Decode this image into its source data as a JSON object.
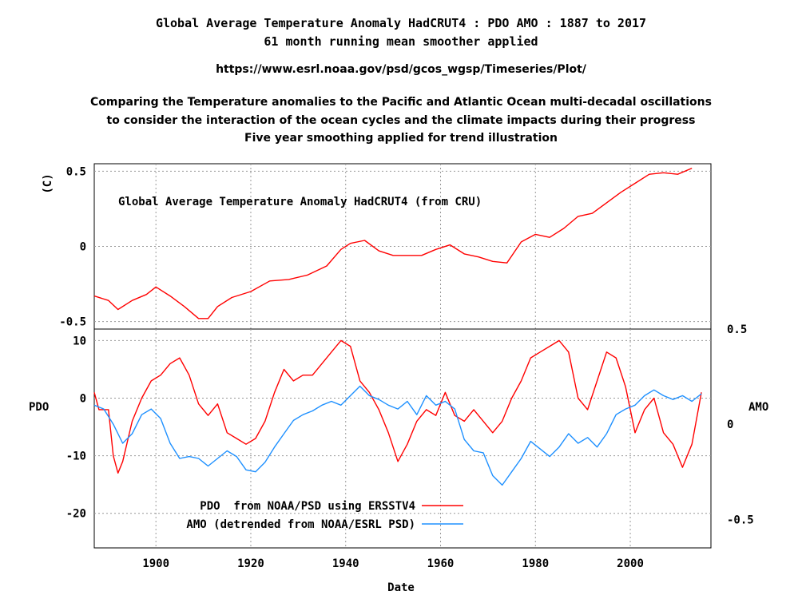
{
  "header": {
    "title_line1": "Global Average Temperature Anomaly HadCRUT4 : PDO AMO : 1887 to 2017",
    "title_line2": "61 month running mean smoother applied",
    "url": "https://www.esrl.noaa.gov/psd/gcos_wgsp/Timeseries/Plot/",
    "desc_line1": "Comparing the Temperature anomalies to the Pacific and Atlantic Ocean multi-decadal oscillations",
    "desc_line2": "to consider the interaction of the ocean cycles and the climate impacts during their progress",
    "desc_line3": "Five year smoothing applied for trend illustration"
  },
  "chart_data": [
    {
      "type": "line",
      "title": "Global Average Temperature Anomaly HadCRUT4 (from CRU)",
      "xlabel": "",
      "ylabel": "(C)",
      "xlim": [
        1887,
        2017
      ],
      "ylim": [
        -0.55,
        0.55
      ],
      "yticks": [
        0.5,
        0,
        -0.5
      ],
      "ytick_labels": [
        "0.5",
        "0",
        "-0.5"
      ],
      "grid": true,
      "series": [
        {
          "name": "",
          "color": "#ff0000",
          "x": [
            1887,
            1890,
            1892,
            1895,
            1898,
            1900,
            1903,
            1906,
            1909,
            1911,
            1913,
            1916,
            1920,
            1924,
            1928,
            1932,
            1936,
            1939,
            1941,
            1944,
            1947,
            1950,
            1953,
            1956,
            1959,
            1962,
            1965,
            1968,
            1971,
            1974,
            1977,
            1980,
            1983,
            1986,
            1989,
            1992,
            1995,
            1998,
            2001,
            2004,
            2007,
            2010,
            2013
          ],
          "y": [
            -0.33,
            -0.36,
            -0.42,
            -0.36,
            -0.32,
            -0.27,
            -0.33,
            -0.4,
            -0.48,
            -0.48,
            -0.4,
            -0.34,
            -0.3,
            -0.23,
            -0.22,
            -0.19,
            -0.13,
            -0.02,
            0.02,
            0.04,
            -0.03,
            -0.06,
            -0.06,
            -0.06,
            -0.02,
            0.01,
            -0.05,
            -0.07,
            -0.1,
            -0.11,
            0.03,
            0.08,
            0.06,
            0.12,
            0.2,
            0.22,
            0.29,
            0.36,
            0.42,
            0.48,
            0.49,
            0.48,
            0.52
          ]
        }
      ]
    },
    {
      "type": "line",
      "xlabel": "Date",
      "ylabel": "PDO",
      "y2label": "AMO",
      "xlim": [
        1887,
        2017
      ],
      "ylim": [
        -26,
        12
      ],
      "y2lim": [
        -0.65,
        0.5
      ],
      "xticks": [
        1900,
        1920,
        1940,
        1960,
        1980,
        2000
      ],
      "xtick_labels": [
        "1900",
        "1920",
        "1940",
        "1960",
        "1980",
        "2000"
      ],
      "yticks": [
        10,
        0,
        -10,
        -20
      ],
      "ytick_labels": [
        "10",
        "0",
        "-10",
        "-20"
      ],
      "y2ticks": [
        0.5,
        0,
        -0.5
      ],
      "y2tick_labels": [
        "0.5",
        "0",
        "-0.5"
      ],
      "grid": true,
      "legend": "bottom-left",
      "series": [
        {
          "name": "PDO  from NOAA/PSD using ERSSTV4",
          "color": "#ff0000",
          "axis": "left",
          "x": [
            1887,
            1888,
            1890,
            1891,
            1892,
            1893,
            1895,
            1897,
            1899,
            1901,
            1903,
            1905,
            1907,
            1909,
            1911,
            1913,
            1915,
            1917,
            1919,
            1921,
            1923,
            1925,
            1927,
            1929,
            1931,
            1933,
            1935,
            1937,
            1939,
            1941,
            1943,
            1945,
            1947,
            1949,
            1951,
            1953,
            1955,
            1957,
            1959,
            1961,
            1963,
            1965,
            1967,
            1969,
            1971,
            1973,
            1975,
            1977,
            1979,
            1981,
            1983,
            1985,
            1987,
            1989,
            1991,
            1993,
            1995,
            1997,
            1999,
            2001,
            2003,
            2005,
            2007,
            2009,
            2011,
            2013,
            2015
          ],
          "y": [
            1,
            -2,
            -2,
            -10,
            -13,
            -11,
            -4,
            0,
            3,
            4,
            6,
            7,
            4,
            -1,
            -3,
            -1,
            -6,
            -7,
            -8,
            -7,
            -4,
            1,
            5,
            3,
            4,
            4,
            6,
            8,
            10,
            9,
            3,
            1,
            -2,
            -6,
            -11,
            -8,
            -4,
            -2,
            -3,
            1,
            -3,
            -4,
            -2,
            -4,
            -6,
            -4,
            0,
            3,
            7,
            8,
            9,
            10,
            8,
            0,
            -2,
            3,
            8,
            7,
            2,
            -6,
            -2,
            0,
            -6,
            -8,
            -12,
            -8,
            1
          ]
        },
        {
          "name": "AMO (detrended from NOAA/ESRL PSD)",
          "color": "#1e90ff",
          "axis": "right",
          "x": [
            1887,
            1889,
            1891,
            1893,
            1895,
            1897,
            1899,
            1901,
            1903,
            1905,
            1907,
            1909,
            1911,
            1913,
            1915,
            1917,
            1919,
            1921,
            1923,
            1925,
            1927,
            1929,
            1931,
            1933,
            1935,
            1937,
            1939,
            1941,
            1943,
            1945,
            1947,
            1949,
            1951,
            1953,
            1955,
            1957,
            1959,
            1961,
            1963,
            1965,
            1967,
            1969,
            1971,
            1973,
            1975,
            1977,
            1979,
            1981,
            1983,
            1985,
            1987,
            1989,
            1991,
            1993,
            1995,
            1997,
            1999,
            2001,
            2003,
            2005,
            2007,
            2009,
            2011,
            2013,
            2015
          ],
          "y": [
            0.1,
            0.08,
            0.0,
            -0.1,
            -0.05,
            0.05,
            0.08,
            0.03,
            -0.1,
            -0.18,
            -0.17,
            -0.18,
            -0.22,
            -0.18,
            -0.14,
            -0.17,
            -0.24,
            -0.25,
            -0.2,
            -0.12,
            -0.05,
            0.02,
            0.05,
            0.07,
            0.1,
            0.12,
            0.1,
            0.15,
            0.2,
            0.15,
            0.13,
            0.1,
            0.08,
            0.12,
            0.05,
            0.15,
            0.1,
            0.12,
            0.08,
            -0.08,
            -0.14,
            -0.15,
            -0.27,
            -0.32,
            -0.25,
            -0.18,
            -0.09,
            -0.13,
            -0.17,
            -0.12,
            -0.05,
            -0.1,
            -0.07,
            -0.12,
            -0.05,
            0.05,
            0.08,
            0.1,
            0.15,
            0.18,
            0.15,
            0.13,
            0.15,
            0.12,
            0.16
          ]
        }
      ]
    }
  ]
}
